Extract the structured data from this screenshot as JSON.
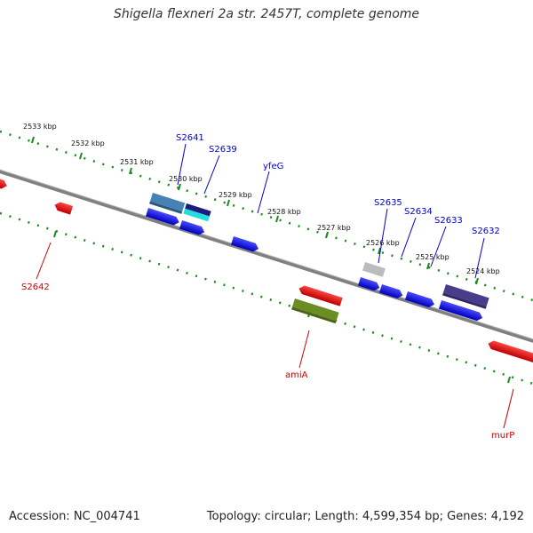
{
  "title": "Shigella flexneri 2a str. 2457T, complete genome",
  "accession": "Accession: NC_004741",
  "topology": "Topology: circular; Length: 4,599,354 bp; Genes: 4,192",
  "scale_labels": [
    "2533 kbp",
    "2532 kbp",
    "2531 kbp",
    "2530 kbp",
    "2529 kbp",
    "2528 kbp",
    "2527 kbp",
    "2526 kbp",
    "2525 kbp",
    "2524 kbp"
  ],
  "genes_forward_labels": [
    "S2641",
    "S2639",
    "yfeG",
    "S2635",
    "S2634",
    "S2633",
    "S2632"
  ],
  "genes_reverse_labels": [
    "S2642",
    "amiA",
    "murP"
  ],
  "colors": {
    "backbone": "#808080",
    "tick": "#1a8a1a",
    "forward_gene": "#1a1aee",
    "reverse_gene": "#ee1111",
    "steelblue_gene": "#4682b4",
    "navy_gene": "#1a1a80",
    "cyan_gene": "#22dddd",
    "gray_gene": "#bbbbbb",
    "olive_gene": "#6b8e23",
    "slateblue_gene": "#483d8b",
    "label_forward": "#0000cc",
    "label_reverse": "#cc0000"
  }
}
